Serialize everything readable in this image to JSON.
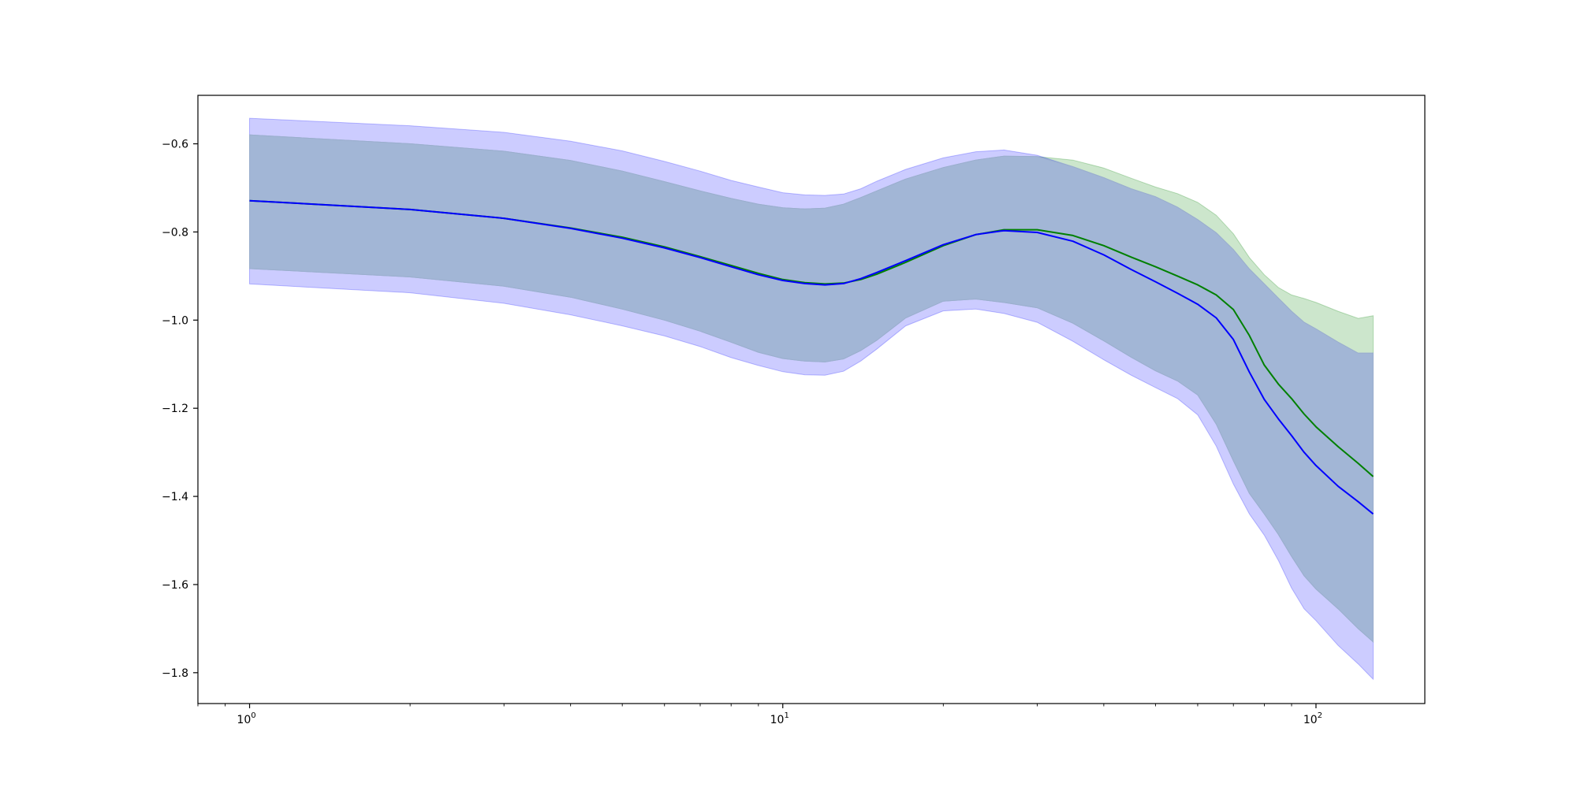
{
  "chart_data": {
    "type": "line",
    "title": "",
    "xlabel": "",
    "ylabel": "",
    "xscale": "log",
    "xlim": [
      0.8,
      160
    ],
    "ylim": [
      -1.87,
      -0.49
    ],
    "grid": false,
    "legend": "none",
    "yticks": [
      -0.6,
      -0.8,
      -1.0,
      -1.2,
      -1.4,
      -1.6,
      -1.8
    ],
    "ytick_labels": [
      "−0.6",
      "−0.8",
      "−1.0",
      "−1.2",
      "−1.4",
      "−1.6",
      "−1.8"
    ],
    "xticks": [
      {
        "value": 1,
        "base": "10",
        "exp": "0"
      },
      {
        "value": 10,
        "base": "10",
        "exp": "1"
      },
      {
        "value": 100,
        "base": "10",
        "exp": "2"
      }
    ],
    "x": [
      1,
      2,
      3,
      4,
      5,
      6,
      7,
      8,
      9,
      10,
      11,
      12,
      13,
      14,
      15,
      17,
      20,
      23,
      26,
      30,
      35,
      40,
      45,
      50,
      55,
      60,
      65,
      70,
      75,
      80,
      85,
      90,
      95,
      100,
      110,
      120,
      128
    ],
    "series": [
      {
        "color": "#008000",
        "values": [
          -0.729,
          -0.749,
          -0.769,
          -0.791,
          -0.812,
          -0.834,
          -0.856,
          -0.876,
          -0.894,
          -0.908,
          -0.915,
          -0.918,
          -0.916,
          -0.908,
          -0.896,
          -0.869,
          -0.831,
          -0.806,
          -0.795,
          -0.795,
          -0.808,
          -0.831,
          -0.857,
          -0.879,
          -0.9,
          -0.92,
          -0.943,
          -0.976,
          -1.035,
          -1.102,
          -1.145,
          -1.178,
          -1.213,
          -1.242,
          -1.287,
          -1.325,
          -1.355
        ],
        "band_upper": [
          -0.58,
          -0.6,
          -0.617,
          -0.638,
          -0.662,
          -0.686,
          -0.707,
          -0.724,
          -0.737,
          -0.745,
          -0.748,
          -0.746,
          -0.737,
          -0.722,
          -0.707,
          -0.68,
          -0.654,
          -0.637,
          -0.628,
          -0.629,
          -0.637,
          -0.655,
          -0.678,
          -0.698,
          -0.713,
          -0.733,
          -0.762,
          -0.804,
          -0.858,
          -0.897,
          -0.926,
          -0.943,
          -0.951,
          -0.96,
          -0.98,
          -0.996,
          -0.99
        ]
      },
      {
        "color": "#0000ff",
        "values": [
          -0.729,
          -0.749,
          -0.769,
          -0.792,
          -0.814,
          -0.836,
          -0.858,
          -0.879,
          -0.897,
          -0.91,
          -0.917,
          -0.92,
          -0.917,
          -0.906,
          -0.892,
          -0.865,
          -0.829,
          -0.806,
          -0.797,
          -0.801,
          -0.821,
          -0.852,
          -0.885,
          -0.913,
          -0.939,
          -0.964,
          -0.995,
          -1.044,
          -1.118,
          -1.18,
          -1.224,
          -1.262,
          -1.3,
          -1.33,
          -1.377,
          -1.412,
          -1.44
        ],
        "band_upper": [
          -0.542,
          -0.559,
          -0.574,
          -0.594,
          -0.616,
          -0.64,
          -0.662,
          -0.683,
          -0.698,
          -0.711,
          -0.716,
          -0.717,
          -0.714,
          -0.702,
          -0.685,
          -0.658,
          -0.632,
          -0.618,
          -0.614,
          -0.626,
          -0.652,
          -0.677,
          -0.702,
          -0.72,
          -0.744,
          -0.772,
          -0.802,
          -0.84,
          -0.884,
          -0.918,
          -0.95,
          -0.98,
          -1.005,
          -1.02,
          -1.05,
          -1.075,
          -1.075
        ],
        "band_lower": [
          -0.918,
          -0.938,
          -0.962,
          -0.988,
          -1.013,
          -1.036,
          -1.06,
          -1.085,
          -1.103,
          -1.117,
          -1.124,
          -1.125,
          -1.116,
          -1.093,
          -1.066,
          -1.013,
          -0.979,
          -0.975,
          -0.985,
          -1.005,
          -1.048,
          -1.09,
          -1.125,
          -1.153,
          -1.178,
          -1.215,
          -1.286,
          -1.372,
          -1.44,
          -1.488,
          -1.545,
          -1.608,
          -1.655,
          -1.682,
          -1.738,
          -1.78,
          -1.815
        ]
      }
    ],
    "overlap_band_lower": [
      -0.883,
      -0.902,
      -0.923,
      -0.948,
      -0.975,
      -1.0,
      -1.025,
      -1.05,
      -1.073,
      -1.087,
      -1.093,
      -1.095,
      -1.088,
      -1.069,
      -1.046,
      -0.995,
      -0.957,
      -0.952,
      -0.96,
      -0.972,
      -1.007,
      -1.047,
      -1.084,
      -1.115,
      -1.138,
      -1.17,
      -1.236,
      -1.319,
      -1.393,
      -1.44,
      -1.486,
      -1.536,
      -1.58,
      -1.61,
      -1.655,
      -1.7,
      -1.73
    ]
  }
}
